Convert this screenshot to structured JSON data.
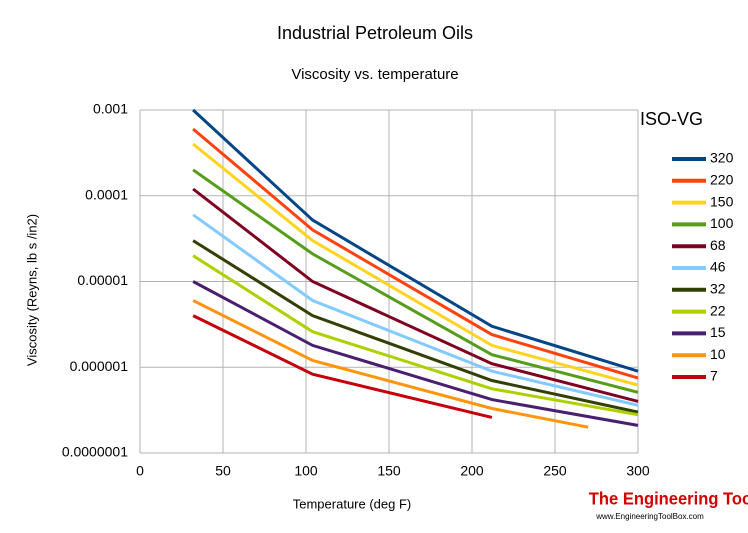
{
  "chart_data": {
    "type": "line",
    "title": "Industrial Petroleum Oils",
    "subtitle": "Viscosity vs. temperature",
    "x_label": "Temperature (deg F)",
    "y_label": "Viscosity (Reyns, lb s /in2)",
    "legend_title": "ISO-VG",
    "legend": "right",
    "log_y": true,
    "grid": true,
    "xlim": [
      0,
      300
    ],
    "xticks": [
      0,
      50,
      100,
      150,
      200,
      250,
      300
    ],
    "ylim": [
      1e-07,
      0.001
    ],
    "yticks": [
      0.001,
      0.0001,
      1e-05,
      1e-06,
      {
        "value": 1e-07,
        "label": "0.0000001"
      }
    ],
    "series": [
      {
        "name": "320",
        "color": "#004586",
        "x": [
          32,
          104,
          212,
          300
        ],
        "values": [
          0.001,
          5.2e-05,
          3e-06,
          9e-07
        ]
      },
      {
        "name": "220",
        "color": "#ff420e",
        "x": [
          32,
          104,
          212,
          300
        ],
        "values": [
          0.0006,
          4e-05,
          2.4e-06,
          7.5e-07
        ]
      },
      {
        "name": "150",
        "color": "#ffd320",
        "x": [
          32,
          104,
          212,
          300
        ],
        "values": [
          0.0004,
          3e-05,
          1.8e-06,
          6.2e-07
        ]
      },
      {
        "name": "100",
        "color": "#579d1c",
        "x": [
          32,
          104,
          212,
          300
        ],
        "values": [
          0.0002,
          2.1e-05,
          1.4e-06,
          5.1e-07
        ]
      },
      {
        "name": "68",
        "color": "#7e0021",
        "x": [
          32,
          104,
          212,
          300
        ],
        "values": [
          0.00012,
          1e-05,
          1.1e-06,
          4e-07
        ]
      },
      {
        "name": "46",
        "color": "#83caff",
        "x": [
          32,
          104,
          212,
          300
        ],
        "values": [
          6e-05,
          6e-06,
          9e-07,
          3.6e-07
        ]
      },
      {
        "name": "32",
        "color": "#314004",
        "x": [
          32,
          104,
          212,
          300
        ],
        "values": [
          3e-05,
          4e-06,
          7e-07,
          3e-07
        ]
      },
      {
        "name": "22",
        "color": "#aecf00",
        "x": [
          32,
          104,
          212,
          300
        ],
        "values": [
          2e-05,
          2.6e-06,
          5.6e-07,
          2.8e-07
        ]
      },
      {
        "name": "15",
        "color": "#4b1f6f",
        "x": [
          32,
          104,
          212,
          300
        ],
        "values": [
          1e-05,
          1.8e-06,
          4.2e-07,
          2.1e-07
        ]
      },
      {
        "name": "10",
        "color": "#ff950e",
        "x": [
          32,
          104,
          212,
          270
        ],
        "values": [
          6e-06,
          1.2e-06,
          3.3e-07,
          2e-07
        ]
      },
      {
        "name": "7",
        "color": "#c5000b",
        "x": [
          32,
          104,
          212
        ],
        "values": [
          4e-06,
          8.3e-07,
          2.6e-07
        ]
      }
    ],
    "brand": "The Engineering ToolBox",
    "brand_url": "www.EngineeringToolBox.com"
  }
}
